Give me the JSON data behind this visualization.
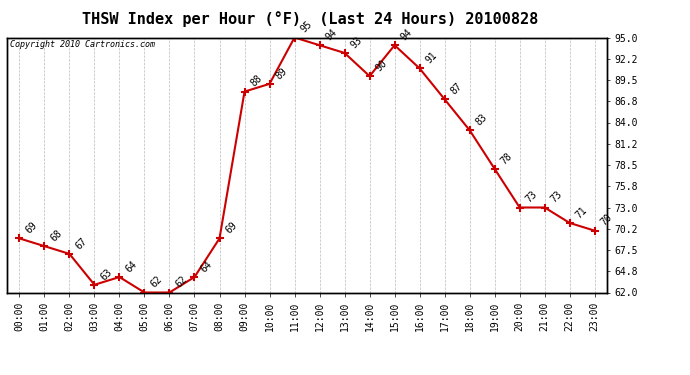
{
  "title": "THSW Index per Hour (°F)  (Last 24 Hours) 20100828",
  "copyright": "Copyright 2010 Cartronics.com",
  "hours": [
    0,
    1,
    2,
    3,
    4,
    5,
    6,
    7,
    8,
    9,
    10,
    11,
    12,
    13,
    14,
    15,
    16,
    17,
    18,
    19,
    20,
    21,
    22,
    23
  ],
  "hour_labels": [
    "00:00",
    "01:00",
    "02:00",
    "03:00",
    "04:00",
    "05:00",
    "06:00",
    "07:00",
    "08:00",
    "09:00",
    "10:00",
    "11:00",
    "12:00",
    "13:00",
    "14:00",
    "15:00",
    "16:00",
    "17:00",
    "18:00",
    "19:00",
    "20:00",
    "21:00",
    "22:00",
    "23:00"
  ],
  "values": [
    69,
    68,
    67,
    63,
    64,
    62,
    62,
    64,
    69,
    88,
    89,
    95,
    94,
    93,
    90,
    94,
    91,
    87,
    83,
    78,
    73,
    73,
    71,
    70
  ],
  "line_color": "#cc0000",
  "marker": "+",
  "marker_color": "#cc0000",
  "marker_size": 6,
  "marker_linewidth": 1.5,
  "background_color": "#ffffff",
  "plot_bg_color": "#ffffff",
  "grid_color": "#bbbbbb",
  "ylim": [
    62.0,
    95.0
  ],
  "yticks": [
    62.0,
    64.8,
    67.5,
    70.2,
    73.0,
    75.8,
    78.5,
    81.2,
    84.0,
    86.8,
    89.5,
    92.2,
    95.0
  ],
  "title_fontsize": 11,
  "label_fontsize": 7,
  "annotation_fontsize": 7,
  "copyright_fontsize": 6,
  "linewidth": 1.5
}
